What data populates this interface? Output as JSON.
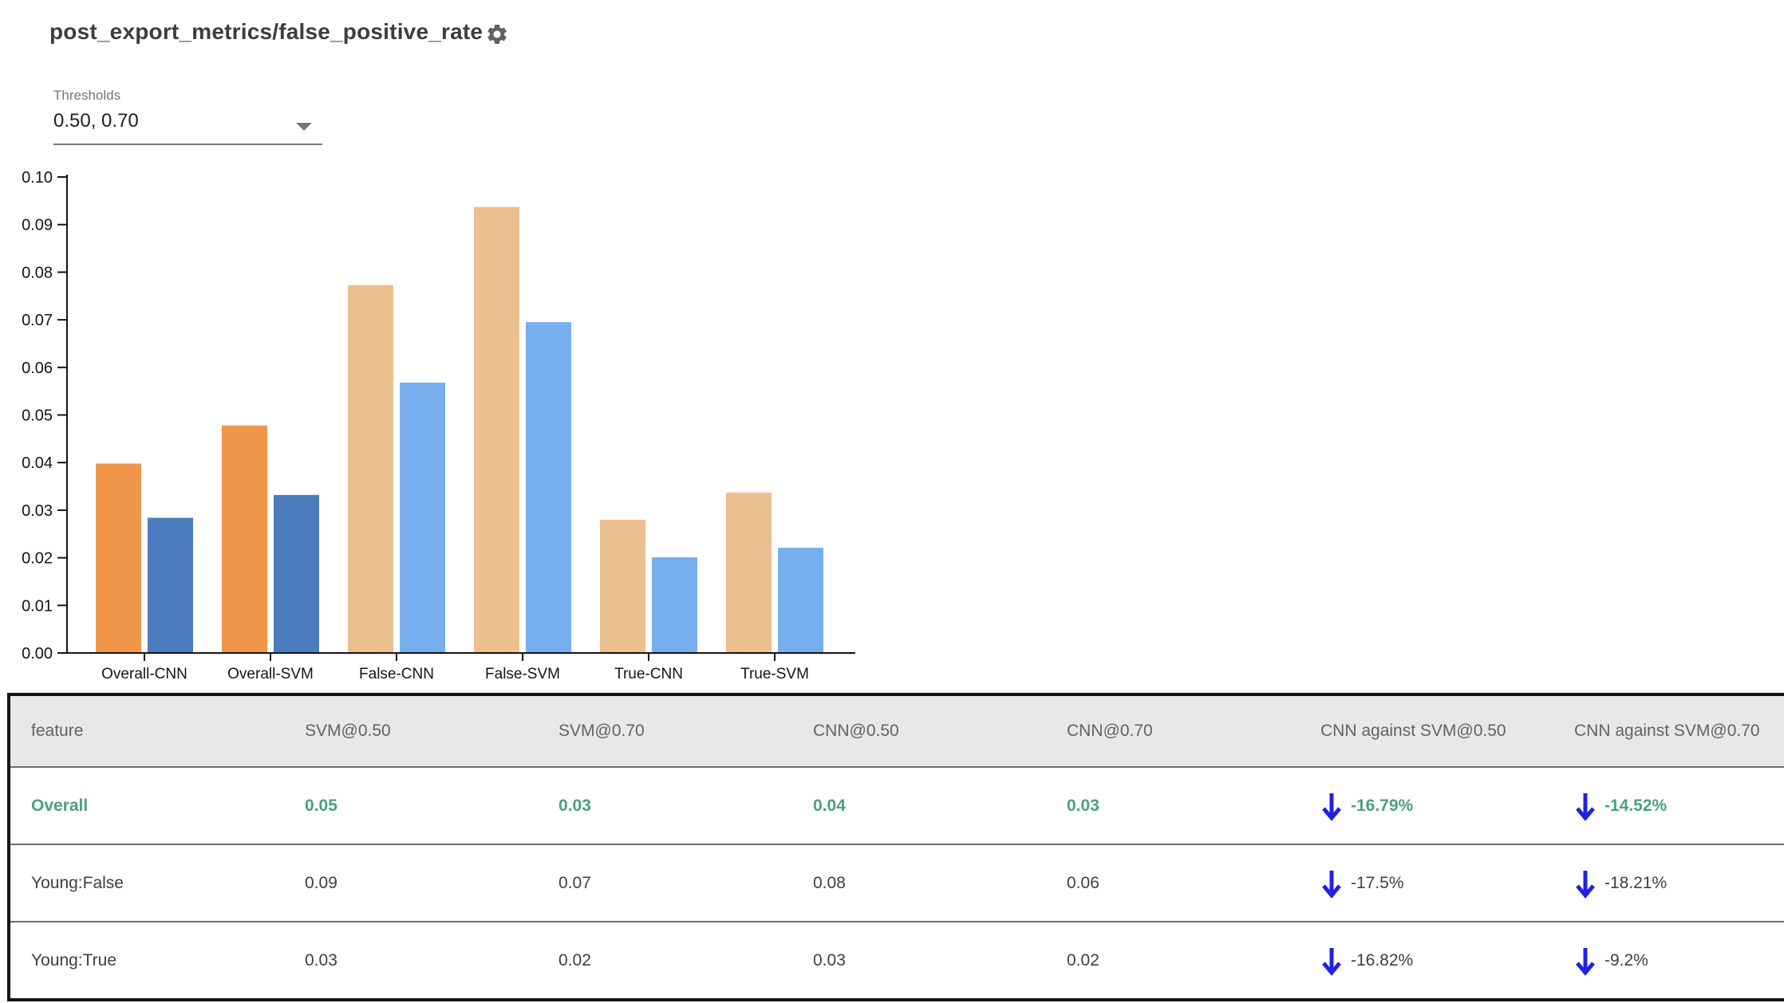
{
  "header": {
    "title": "post_export_metrics/false_positive_rate",
    "gear_icon": "settings-gear"
  },
  "thresholds": {
    "label": "Thresholds",
    "value": "0.50, 0.70"
  },
  "chart_data": {
    "type": "bar",
    "title": "",
    "categories": [
      "Overall-CNN",
      "Overall-SVM",
      "False-CNN",
      "False-SVM",
      "True-CNN",
      "True-SVM"
    ],
    "series": [
      {
        "name": "threshold 0.50",
        "values": [
          0.0398,
          0.0478,
          0.0773,
          0.0937,
          0.028,
          0.0337
        ]
      },
      {
        "name": "threshold 0.70",
        "values": [
          0.0284,
          0.0332,
          0.0568,
          0.0695,
          0.0201,
          0.0221
        ]
      }
    ],
    "bar_colors": [
      [
        "#f0964a",
        "#4b7cbe"
      ],
      [
        "#f0964a",
        "#4b7cbe"
      ],
      [
        "#eac08f",
        "#77aeee"
      ],
      [
        "#eac08f",
        "#77aeee"
      ],
      [
        "#eac08f",
        "#77aeee"
      ],
      [
        "#eac08f",
        "#77aeee"
      ]
    ],
    "ylim": [
      0,
      0.1
    ],
    "yticks": [
      "0.00",
      "0.01",
      "0.02",
      "0.03",
      "0.04",
      "0.05",
      "0.06",
      "0.07",
      "0.08",
      "0.09",
      "0.10"
    ],
    "grid": false,
    "legend": "none"
  },
  "table": {
    "columns": [
      "feature",
      "SVM@0.50",
      "SVM@0.70",
      "CNN@0.50",
      "CNN@0.70",
      "CNN against SVM@0.50",
      "CNN against SVM@0.70"
    ],
    "rows": [
      {
        "feature": "Overall",
        "values": [
          "0.05",
          "0.03",
          "0.04",
          "0.03"
        ],
        "deltas": [
          "-16.79%",
          "-14.52%"
        ],
        "highlight": true
      },
      {
        "feature": "Young:False",
        "values": [
          "0.09",
          "0.07",
          "0.08",
          "0.06"
        ],
        "deltas": [
          "-17.5%",
          "-18.21%"
        ],
        "highlight": false
      },
      {
        "feature": "Young:True",
        "values": [
          "0.03",
          "0.02",
          "0.03",
          "0.02"
        ],
        "deltas": [
          "-16.82%",
          "-9.2%"
        ],
        "highlight": false
      }
    ],
    "delta_direction": "down"
  },
  "colors": {
    "highlight_green": "#4c9e80",
    "arrow_blue": "#2121e0",
    "header_bg": "#e8e8e8",
    "header_text": "#5f6368",
    "body_text": "#3c4043",
    "axis": "#141414",
    "bar_strong_orange": "#f0964a",
    "bar_strong_blue": "#4b7cbe",
    "bar_light_tan": "#eac08f",
    "bar_light_blue": "#77aeee"
  }
}
